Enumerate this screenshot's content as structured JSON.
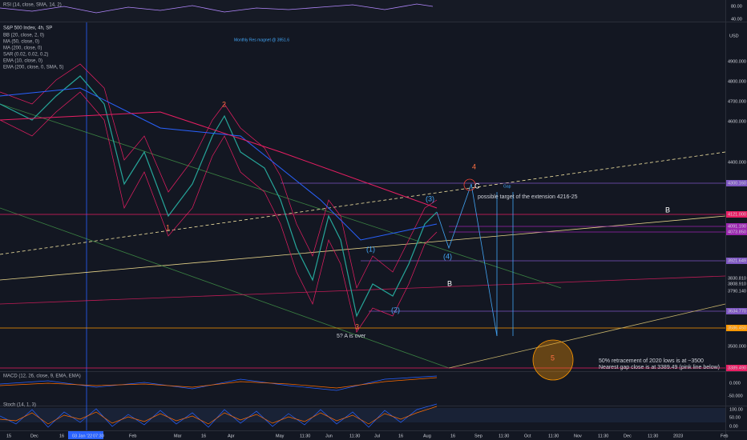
{
  "rsi": {
    "label": "RSI (14, close, SMA, 14, 2)",
    "axis": [
      "80.00",
      "40.00"
    ]
  },
  "main": {
    "symbol": "S&P 500 Index, 4h, SP",
    "indicators": [
      "BB (20, close, 2, 0)",
      "MA (50, close, 0)",
      "MA (200, close, 0)",
      "SAR (0.02, 0.02, 0.2)",
      "EMA (10, close, 0)",
      "EMA (200, close, 0, SMA, 5)"
    ],
    "currency": "USD",
    "price_axis": [
      "4900.000",
      "4800.000",
      "4700.000",
      "4600.000",
      "4400.000",
      "4300.160",
      "4121.000",
      "4091.190",
      "4073.850",
      "3921.649",
      "3830.810",
      "3808.910",
      "3790.140",
      "3634.770",
      "3586.450",
      "3500.000",
      "3389.490"
    ],
    "waves": [
      "1",
      "2",
      "3",
      "4",
      "5",
      "C",
      "B",
      "B",
      "(1)",
      "(2)",
      "(3)",
      "(4)"
    ],
    "annotations": [
      "possible target of the extension 4216-25",
      "5? A is over",
      "50% retracement of 2020 lows is at ~3500",
      "Nearest gap close is at 3389.49 (pink line below)",
      "Gap",
      "Monthly Res magnet @ 3951.6"
    ]
  },
  "macd": {
    "label": "MACD (12, 26, close, 9, EMA, EMA)",
    "axis": [
      "0.000",
      "-50.000"
    ]
  },
  "stoch": {
    "label": "Stoch (14, 1, 3)",
    "axis": [
      "100.00",
      "50.00",
      "0.00"
    ]
  },
  "time_axis": [
    "15",
    "Dec",
    "16",
    "03 Jan '22",
    "07:30",
    "Feb",
    "Mar",
    "16",
    "Apr",
    "May",
    "11:30",
    "Jun",
    "11:30",
    "Jul",
    "16",
    "Aug",
    "16",
    "Sep",
    "11:30",
    "Oct",
    "11:30",
    "Nov",
    "11:30",
    "Dec",
    "11:30",
    "2023",
    "Feb"
  ]
}
